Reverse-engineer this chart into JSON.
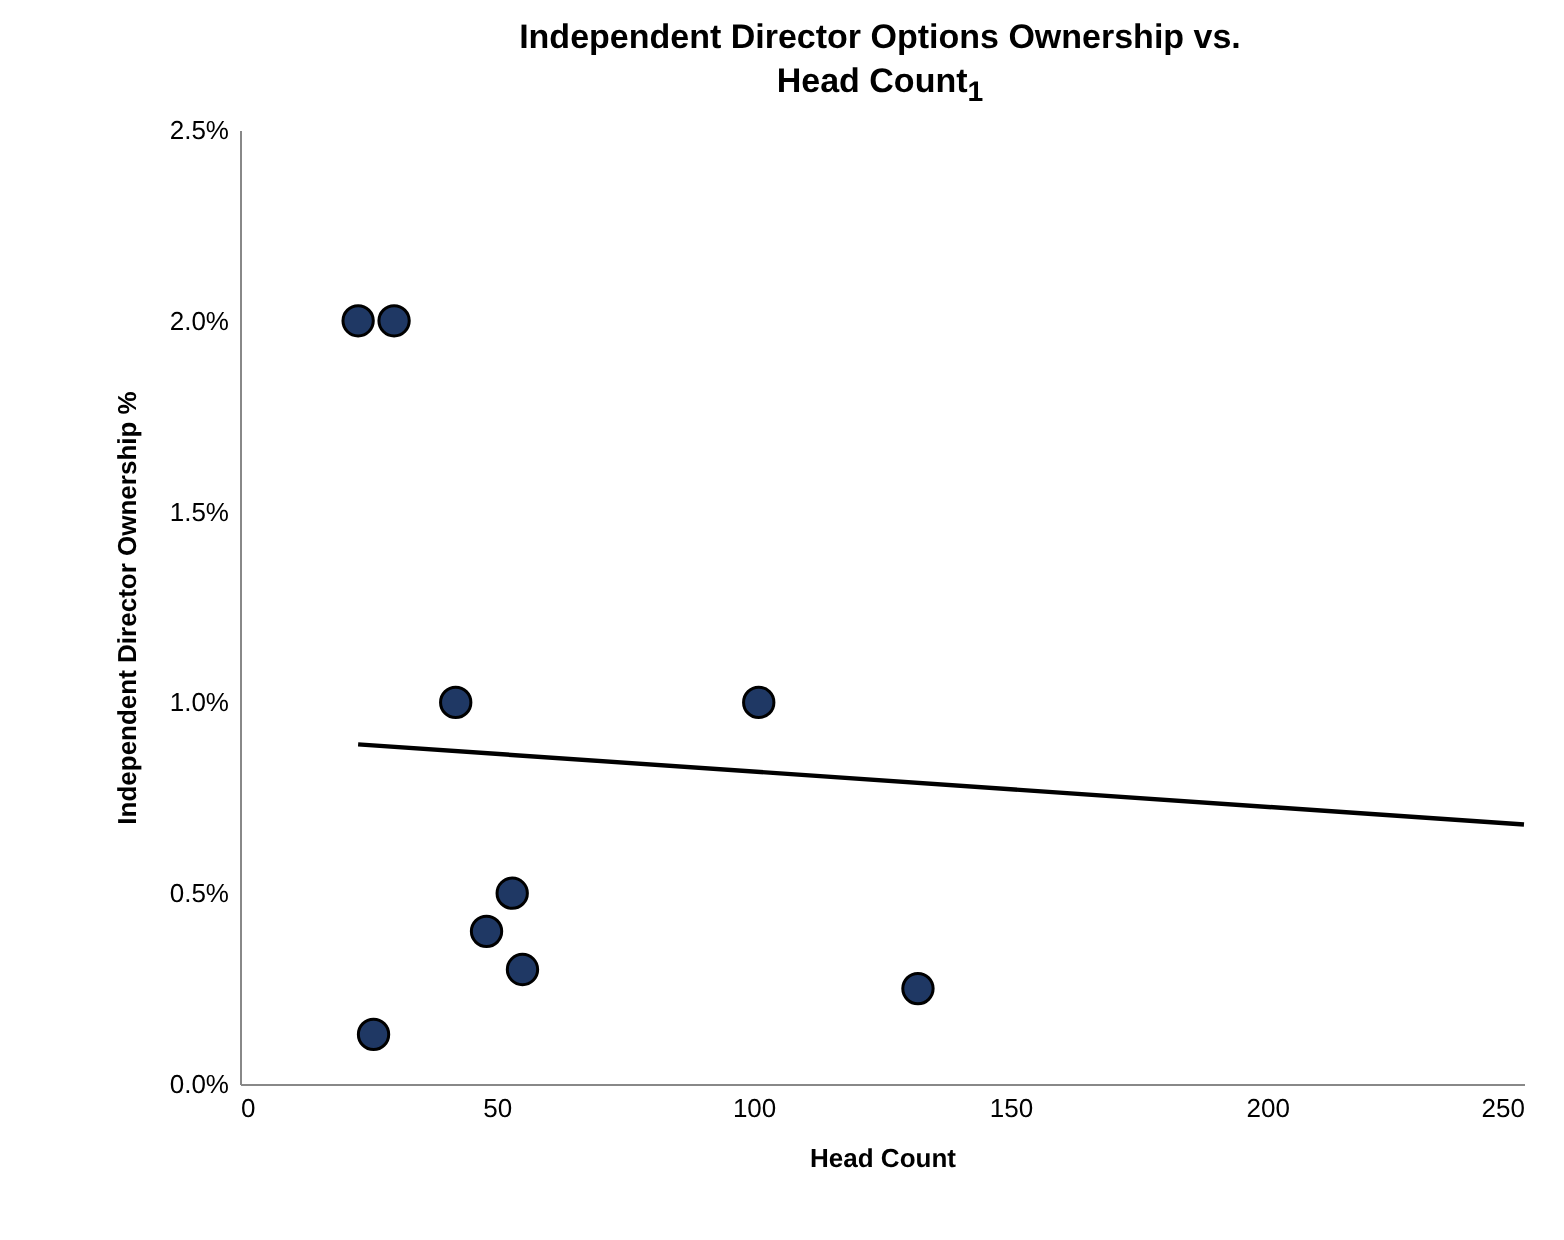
{
  "chart_data": {
    "type": "scatter",
    "title": "Independent Director Options Ownership vs. Head Count$_{1}$",
    "xlabel": "Head Count",
    "ylabel": "Independent Director Ownership %",
    "xlim": [
      0,
      250
    ],
    "xticks": [
      0,
      50,
      100,
      150,
      200,
      250
    ],
    "ylim": [
      0,
      2.5
    ],
    "yticks": [
      {
        "value": 0,
        "label": "0.0%"
      },
      {
        "value": 0.5,
        "label": "0.5%"
      },
      {
        "value": 1,
        "label": "1.0%"
      },
      {
        "value": 1.5,
        "label": "1.5%"
      },
      {
        "value": 2,
        "label": "2.0%"
      },
      {
        "value": 2.5,
        "label": "2.5%"
      }
    ],
    "grid": false,
    "series": [
      {
        "marker": "circle",
        "color": "#1f3864",
        "x": [
          23,
          30,
          42,
          101,
          53,
          48,
          55,
          26,
          132
        ],
        "values": [
          2.0,
          2.0,
          1.0,
          1.0,
          0.5,
          0.4,
          0.3,
          0.13,
          0.25
        ]
      },
      {
        "type": "line",
        "marker": "none",
        "color": "#000000",
        "x": [
          23,
          250
        ],
        "values": [
          0.89,
          0.68
        ]
      }
    ]
  }
}
